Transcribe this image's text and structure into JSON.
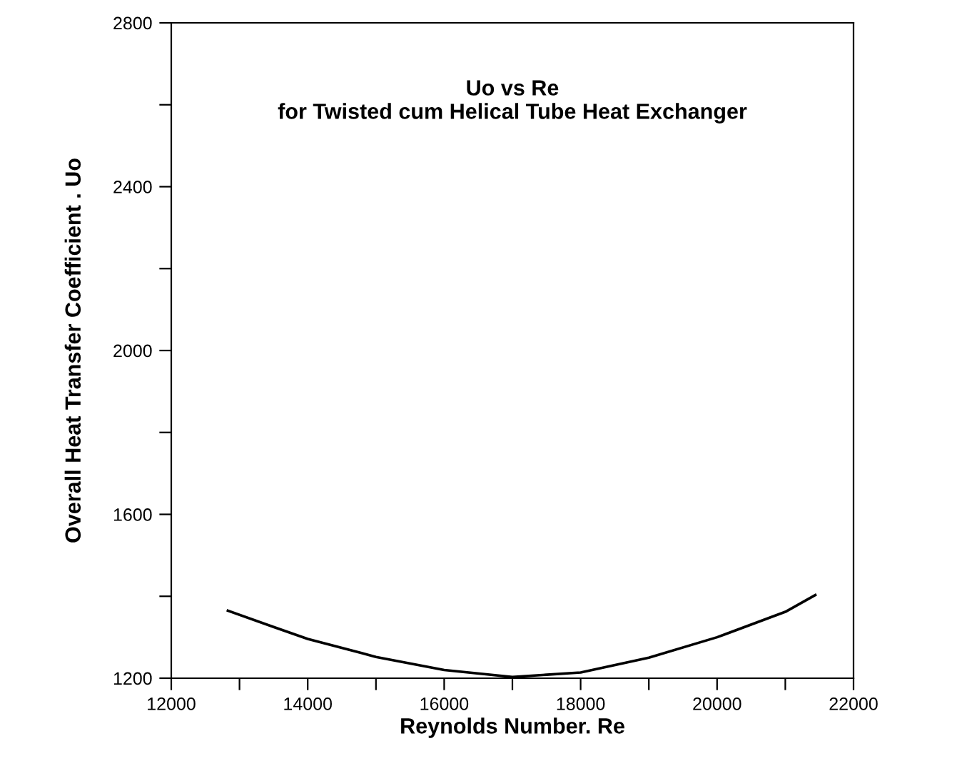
{
  "chart_data": {
    "type": "line",
    "title": "Uo vs Re\nfor Twisted cum Helical Tube Heat Exchanger",
    "xlabel": "Reynolds Number. Re",
    "ylabel": "Overall Heat Transfer Coefficient . Uo",
    "x": [
      12830,
      13500,
      14000,
      15000,
      16000,
      17000,
      18000,
      19000,
      20000,
      21000,
      21440
    ],
    "series": [
      {
        "color": "#000000",
        "values": [
          1365,
          1325,
          1296,
          1252,
          1220,
          1203,
          1214,
          1250,
          1300,
          1362,
          1403
        ]
      }
    ],
    "xlim": [
      12000,
      22000
    ],
    "ylim": [
      1200,
      2800
    ],
    "xticks": [
      12000,
      {
        "value": 13000,
        "label": null
      },
      14000,
      {
        "value": 15000,
        "label": null
      },
      16000,
      {
        "value": 17000,
        "label": null
      },
      18000,
      {
        "value": 19000,
        "label": null
      },
      20000,
      {
        "value": 21000,
        "label": null
      },
      22000
    ],
    "yticks": [
      1200,
      {
        "value": 1400,
        "label": null
      },
      1600,
      {
        "value": 1800,
        "label": null
      },
      2000,
      {
        "value": 2200,
        "label": null
      },
      2400,
      {
        "value": 2600,
        "label": null
      },
      2800
    ],
    "grid": false,
    "legend": false,
    "marker": "none",
    "line_style": "solid"
  }
}
